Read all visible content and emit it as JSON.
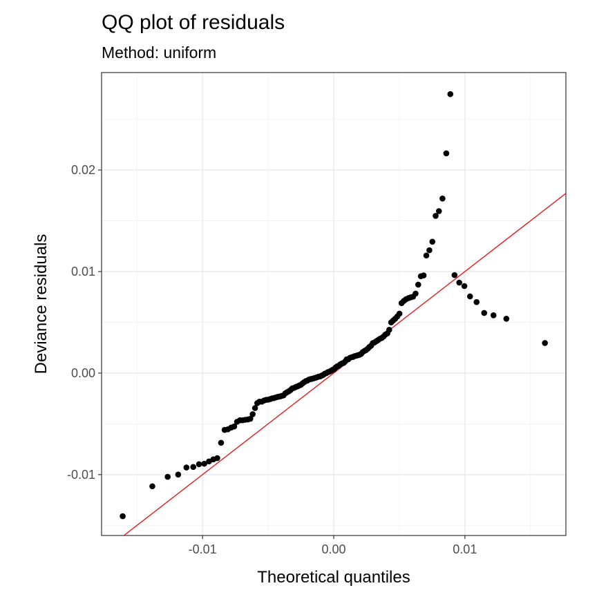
{
  "chart_data": {
    "type": "scatter",
    "title": "QQ plot of residuals",
    "subtitle": "Method: uniform",
    "xlabel": "Theoretical quantiles",
    "ylabel": "Deviance residuals",
    "xlim": [
      -0.0177,
      0.0177
    ],
    "ylim": [
      -0.016,
      0.0296
    ],
    "x_ticks": [
      -0.01,
      0.0,
      0.01
    ],
    "x_tick_labels": [
      "-0.01",
      "0.00",
      "0.01"
    ],
    "y_ticks": [
      -0.01,
      0.0,
      0.01,
      0.02
    ],
    "y_tick_labels": [
      "-0.01",
      "0.00",
      "0.01",
      "0.02"
    ],
    "grid": true,
    "point_color": "#000000",
    "reference_line": {
      "color": "#e41a1c",
      "intercept": 0.0,
      "slope": 1.0
    },
    "points": {
      "x": [
        -0.01609,
        -0.01383,
        -0.01266,
        -0.01186,
        -0.01123,
        -0.01071,
        -0.01027,
        -0.00987,
        -0.00951,
        -0.00918,
        -0.00888,
        -0.00859,
        -0.00832,
        -0.00807,
        -0.00782,
        -0.00759,
        -0.00737,
        -0.00715,
        -0.00695,
        -0.00675,
        -0.00655,
        -0.00636,
        -0.00618,
        -0.006,
        -0.00583,
        -0.00566,
        -0.00549,
        -0.00532,
        -0.00516,
        -0.00501,
        -0.00485,
        -0.0047,
        -0.00455,
        -0.0044,
        -0.00426,
        -0.00411,
        -0.00397,
        -0.00383,
        -0.00369,
        -0.00356,
        -0.00342,
        -0.00329,
        -0.00316,
        -0.00302,
        -0.00289,
        -0.00276,
        -0.00264,
        -0.00251,
        -0.00238,
        -0.00226,
        -0.00213,
        -0.00201,
        -0.00188,
        -0.00176,
        -0.00164,
        -0.00152,
        -0.0014,
        -0.00127,
        -0.00115,
        -0.00103,
        -0.00091,
        -0.0008,
        -0.00068,
        -0.00056,
        -0.00044,
        -0.00032,
        -0.0002,
        -8e-05,
        3e-05,
        0.00015,
        0.00027,
        0.00039,
        0.00051,
        0.00063,
        0.00075,
        0.00087,
        0.00099,
        0.00111,
        0.00123,
        0.00135,
        0.00147,
        0.00159,
        0.00172,
        0.00184,
        0.00196,
        0.00209,
        0.00221,
        0.00234,
        0.00246,
        0.00259,
        0.00272,
        0.00285,
        0.00298,
        0.00311,
        0.00325,
        0.00338,
        0.00352,
        0.00366,
        0.0038,
        0.00394,
        0.00409,
        0.00423,
        0.00438,
        0.00453,
        0.00469,
        0.00485,
        0.00501,
        0.00517,
        0.00534,
        0.00551,
        0.00569,
        0.00587,
        0.00605,
        0.00624,
        0.00644,
        0.00664,
        0.00685,
        0.00706,
        0.00729,
        0.00752,
        0.00777,
        0.00802,
        0.00829,
        0.00858,
        0.00889,
        0.00921,
        0.00957,
        0.00996,
        0.01039,
        0.01089,
        0.01147,
        0.01218,
        0.01316,
        0.0161
      ],
      "y": [
        -0.0141,
        -0.01115,
        -0.01022,
        -0.01,
        -0.0093,
        -0.00925,
        -0.00898,
        -0.00893,
        -0.0087,
        -0.0085,
        -0.00838,
        -0.00687,
        -0.0056,
        -0.00554,
        -0.00537,
        -0.00526,
        -0.0048,
        -0.00465,
        -0.00465,
        -0.0046,
        -0.00457,
        -0.0045,
        -0.00405,
        -0.00345,
        -0.00296,
        -0.00282,
        -0.00282,
        -0.00271,
        -0.00264,
        -0.00262,
        -0.00256,
        -0.00249,
        -0.00246,
        -0.00239,
        -0.00234,
        -0.00231,
        -0.00225,
        -0.0022,
        -0.00199,
        -0.00189,
        -0.00179,
        -0.00167,
        -0.00151,
        -0.00146,
        -0.00137,
        -0.00131,
        -0.00123,
        -0.00116,
        -0.00102,
        -0.0009,
        -0.00079,
        -0.00074,
        -0.00063,
        -0.00059,
        -0.00056,
        -0.00051,
        -0.00047,
        -0.00041,
        -0.00035,
        -0.00033,
        -0.00024,
        -0.00018,
        -6e-05,
        0.0,
        0.0001,
        0.00014,
        0.00023,
        0.00033,
        0.00039,
        0.00056,
        0.00067,
        0.00073,
        0.00087,
        0.00095,
        0.00099,
        0.00114,
        0.00135,
        0.00136,
        0.0015,
        0.00156,
        0.00159,
        0.00167,
        0.00171,
        0.00176,
        0.0018,
        0.00189,
        0.00207,
        0.00218,
        0.00226,
        0.0024,
        0.00257,
        0.0027,
        0.00295,
        0.00302,
        0.00314,
        0.00325,
        0.00338,
        0.00346,
        0.0036,
        0.00379,
        0.00391,
        0.00426,
        0.00499,
        0.00518,
        0.00536,
        0.00558,
        0.00585,
        0.00689,
        0.0071,
        0.00727,
        0.00738,
        0.00746,
        0.00753,
        0.00783,
        0.00871,
        0.00954,
        0.00962,
        0.01158,
        0.0121,
        0.01294,
        0.01548,
        0.01595,
        0.01719,
        0.02164,
        0.02748,
        0.00965,
        0.00891,
        0.00857,
        0.00755,
        0.00699,
        0.00592,
        0.00569,
        0.00535,
        0.00296
      ]
    }
  }
}
